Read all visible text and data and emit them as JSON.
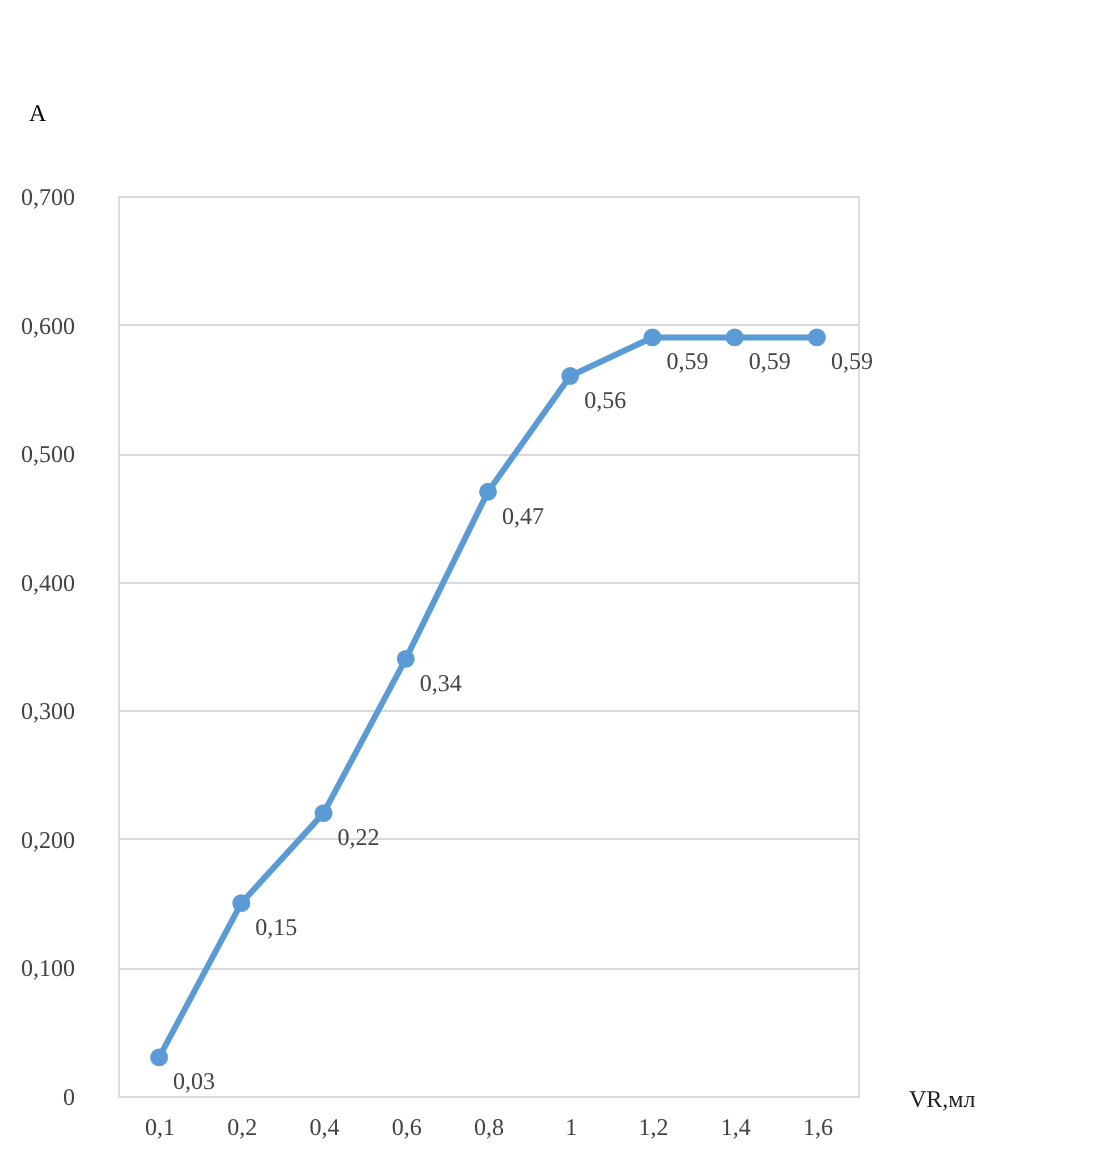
{
  "chart_data": {
    "type": "line",
    "xlabel": "VR,мл",
    "ylabel": "A",
    "categories": [
      "0,1",
      "0,2",
      "0,4",
      "0,6",
      "0,8",
      "1",
      "1,2",
      "1,4",
      "1,6"
    ],
    "series": [
      {
        "color": "#5b9bd5",
        "values": [
          0.03,
          0.15,
          0.22,
          0.34,
          0.47,
          0.56,
          0.59,
          0.59,
          0.59
        ],
        "value_labels": [
          "0,03",
          "0,15",
          "0,22",
          "0,34",
          "0,47",
          "0,56",
          "0,59",
          "0,59",
          "0,59"
        ]
      }
    ],
    "ylim": [
      0,
      0.7
    ],
    "yticks": [
      0,
      {
        "value": 0.1,
        "label": "0,100"
      },
      {
        "value": 0.2,
        "label": "0,200"
      },
      {
        "value": 0.3,
        "label": "0,300"
      },
      {
        "value": 0.4,
        "label": "0,400"
      },
      {
        "value": 0.5,
        "label": "0,500"
      },
      {
        "value": 0.6,
        "label": "0,600"
      },
      {
        "value": 0.7,
        "label": "0,700"
      }
    ],
    "grid": "y",
    "marker": "circle",
    "line_style": "solid"
  }
}
